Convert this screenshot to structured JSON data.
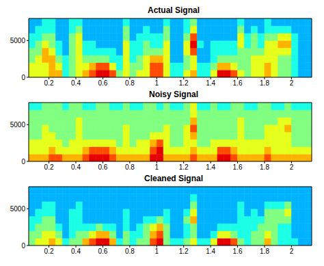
{
  "chart_data": [
    {
      "type": "heatmap",
      "title": "Actual Signal",
      "x_edges": [
        0.05,
        0.1,
        0.15,
        0.2,
        0.25,
        0.3,
        0.35,
        0.4,
        0.45,
        0.5,
        0.55,
        0.6,
        0.65,
        0.7,
        0.75,
        0.8,
        0.85,
        0.9,
        0.95,
        1,
        1.05,
        1.1,
        1.15,
        1.2,
        1.25,
        1.3,
        1.35,
        1.4,
        1.45,
        1.5,
        1.55,
        1.6,
        1.65,
        1.7,
        1.75,
        1.8,
        1.85,
        1.9,
        1.95,
        2,
        2.05,
        2.1,
        2.15
      ],
      "y_edges": [
        0,
        1000,
        2000,
        3000,
        4000,
        5000,
        6000,
        7000,
        8000
      ],
      "xlim": [
        0.05,
        2.15
      ],
      "ylim": [
        0,
        8000
      ],
      "xticks": [
        0.2,
        0.4,
        0.6,
        0.8,
        1,
        1.2,
        1.4,
        1.6,
        1.8,
        2
      ],
      "yticks": [
        0,
        5000
      ],
      "clim": [
        0,
        10
      ],
      "cells": [
        [
          6,
          6,
          6,
          7,
          7,
          4,
          5,
          6,
          7,
          8,
          9,
          9,
          8,
          5,
          6,
          5,
          6,
          6,
          8,
          8,
          6,
          4,
          4,
          6,
          7,
          4,
          4,
          6,
          9,
          9,
          8,
          6,
          5,
          6,
          6,
          7,
          6,
          5,
          5,
          4,
          3,
          3
        ],
        [
          6,
          6,
          6,
          7,
          6,
          4,
          5,
          6,
          6,
          7,
          8,
          8,
          6,
          4,
          6,
          5,
          5,
          6,
          8,
          8,
          6,
          4,
          4,
          5,
          6,
          4,
          4,
          5,
          7,
          7,
          6,
          5,
          5,
          6,
          6,
          7,
          6,
          5,
          5,
          4,
          3,
          3
        ],
        [
          5,
          6,
          7,
          7,
          5,
          4,
          5,
          6,
          5,
          5,
          5,
          5,
          4,
          4,
          6,
          4,
          5,
          6,
          7,
          7,
          6,
          3,
          3,
          5,
          6,
          3,
          3,
          4,
          5,
          5,
          5,
          5,
          5,
          6,
          6,
          6,
          6,
          5,
          5,
          4,
          3,
          3
        ],
        [
          5,
          5,
          7,
          6,
          4,
          3,
          5,
          6,
          4,
          4,
          4,
          4,
          4,
          3,
          6,
          4,
          4,
          5,
          5,
          5,
          6,
          3,
          3,
          6,
          8,
          3,
          3,
          4,
          4,
          4,
          4,
          5,
          5,
          5,
          5,
          6,
          6,
          6,
          6,
          4,
          3,
          3
        ],
        [
          4,
          5,
          6,
          5,
          4,
          3,
          5,
          6,
          4,
          4,
          3,
          3,
          3,
          3,
          6,
          4,
          4,
          5,
          4,
          4,
          6,
          3,
          3,
          6,
          9,
          4,
          3,
          4,
          4,
          4,
          4,
          6,
          4,
          5,
          4,
          6,
          6,
          7,
          7,
          4,
          3,
          3
        ],
        [
          4,
          4,
          5,
          5,
          3,
          3,
          5,
          6,
          3,
          3,
          3,
          3,
          3,
          3,
          5,
          3,
          4,
          4,
          4,
          4,
          5,
          3,
          3,
          5,
          8,
          3,
          3,
          3,
          3,
          3,
          3,
          6,
          4,
          5,
          4,
          5,
          5,
          6,
          6,
          4,
          3,
          3
        ],
        [
          3,
          4,
          4,
          4,
          3,
          3,
          4,
          5,
          3,
          3,
          3,
          3,
          3,
          3,
          5,
          3,
          3,
          4,
          3,
          3,
          5,
          3,
          3,
          4,
          6,
          3,
          3,
          3,
          3,
          3,
          3,
          5,
          3,
          4,
          3,
          4,
          4,
          4,
          4,
          3,
          3,
          3
        ],
        [
          3,
          3,
          4,
          4,
          3,
          3,
          4,
          4,
          3,
          3,
          3,
          3,
          3,
          3,
          4,
          3,
          3,
          3,
          3,
          3,
          4,
          3,
          3,
          4,
          5,
          3,
          3,
          3,
          3,
          3,
          3,
          4,
          3,
          3,
          3,
          4,
          3,
          3,
          3,
          3,
          3,
          3
        ]
      ]
    },
    {
      "type": "heatmap",
      "title": "Noisy Signal",
      "x_edges": [
        0.05,
        0.1,
        0.15,
        0.2,
        0.25,
        0.3,
        0.35,
        0.4,
        0.45,
        0.5,
        0.55,
        0.6,
        0.65,
        0.7,
        0.75,
        0.8,
        0.85,
        0.9,
        0.95,
        1,
        1.05,
        1.1,
        1.15,
        1.2,
        1.25,
        1.3,
        1.35,
        1.4,
        1.45,
        1.5,
        1.55,
        1.6,
        1.65,
        1.7,
        1.75,
        1.8,
        1.85,
        1.9,
        1.95,
        2,
        2.05,
        2.1,
        2.15
      ],
      "y_edges": [
        0,
        1000,
        2000,
        3000,
        4000,
        5000,
        6000,
        7000,
        8000
      ],
      "xlim": [
        0.05,
        2.15
      ],
      "ylim": [
        0,
        8000
      ],
      "xticks": [
        0.2,
        0.4,
        0.6,
        0.8,
        1,
        1.2,
        1.4,
        1.6,
        1.8,
        2
      ],
      "yticks": [
        0,
        5000
      ],
      "clim": [
        0,
        10
      ],
      "cells": [
        [
          7,
          7,
          7,
          8,
          8,
          7,
          7,
          7,
          8,
          9,
          9,
          9,
          8,
          7,
          7,
          7,
          7,
          7,
          9,
          9,
          7,
          7,
          7,
          7,
          8,
          7,
          7,
          7,
          9,
          9,
          8,
          7,
          7,
          7,
          7,
          8,
          7,
          7,
          7,
          7,
          7,
          7
        ],
        [
          6,
          6,
          6,
          7,
          6,
          6,
          6,
          6,
          7,
          8,
          8,
          8,
          7,
          6,
          6,
          6,
          6,
          6,
          8,
          9,
          6,
          6,
          6,
          6,
          7,
          6,
          6,
          6,
          8,
          8,
          7,
          6,
          6,
          6,
          6,
          7,
          6,
          6,
          6,
          6,
          6,
          6
        ],
        [
          6,
          6,
          6,
          6,
          6,
          5,
          6,
          6,
          6,
          6,
          6,
          6,
          6,
          5,
          6,
          5,
          6,
          6,
          7,
          8,
          6,
          5,
          5,
          6,
          6,
          5,
          5,
          6,
          6,
          6,
          6,
          6,
          6,
          6,
          6,
          6,
          6,
          6,
          6,
          5,
          5,
          5
        ],
        [
          5,
          5,
          6,
          6,
          5,
          5,
          5,
          6,
          5,
          5,
          5,
          5,
          5,
          5,
          6,
          5,
          5,
          5,
          6,
          6,
          6,
          5,
          5,
          6,
          7,
          5,
          5,
          5,
          5,
          5,
          5,
          6,
          5,
          5,
          5,
          6,
          6,
          6,
          6,
          5,
          5,
          5
        ],
        [
          5,
          5,
          6,
          5,
          5,
          5,
          5,
          6,
          5,
          5,
          5,
          5,
          5,
          5,
          6,
          5,
          5,
          5,
          5,
          5,
          6,
          5,
          5,
          6,
          8,
          5,
          5,
          5,
          5,
          5,
          5,
          6,
          5,
          5,
          5,
          6,
          6,
          6,
          7,
          5,
          5,
          5
        ],
        [
          5,
          5,
          5,
          5,
          5,
          5,
          5,
          6,
          5,
          5,
          5,
          5,
          5,
          5,
          5,
          5,
          5,
          5,
          5,
          5,
          5,
          5,
          5,
          5,
          7,
          5,
          5,
          5,
          5,
          5,
          5,
          6,
          5,
          5,
          5,
          5,
          5,
          6,
          6,
          5,
          5,
          5
        ],
        [
          5,
          5,
          5,
          5,
          5,
          5,
          5,
          5,
          5,
          5,
          5,
          5,
          5,
          5,
          5,
          5,
          5,
          5,
          5,
          5,
          5,
          5,
          5,
          5,
          6,
          5,
          5,
          5,
          5,
          5,
          5,
          5,
          5,
          5,
          5,
          5,
          5,
          5,
          5,
          5,
          5,
          5
        ],
        [
          4,
          4,
          5,
          5,
          5,
          4,
          5,
          5,
          4,
          4,
          5,
          5,
          4,
          4,
          5,
          4,
          4,
          5,
          5,
          4,
          5,
          4,
          4,
          5,
          6,
          4,
          4,
          5,
          4,
          4,
          5,
          5,
          4,
          4,
          5,
          5,
          4,
          4,
          5,
          4,
          4,
          4
        ]
      ]
    },
    {
      "type": "heatmap",
      "title": "Cleaned Signal",
      "x_edges": [
        0.05,
        0.1,
        0.15,
        0.2,
        0.25,
        0.3,
        0.35,
        0.4,
        0.45,
        0.5,
        0.55,
        0.6,
        0.65,
        0.7,
        0.75,
        0.8,
        0.85,
        0.9,
        0.95,
        1,
        1.05,
        1.1,
        1.15,
        1.2,
        1.25,
        1.3,
        1.35,
        1.4,
        1.45,
        1.5,
        1.55,
        1.6,
        1.65,
        1.7,
        1.75,
        1.8,
        1.85,
        1.9,
        1.95,
        2,
        2.05,
        2.1,
        2.15
      ],
      "y_edges": [
        0,
        1000,
        2000,
        3000,
        4000,
        5000,
        6000,
        7000,
        8000
      ],
      "xlim": [
        0.05,
        2.15
      ],
      "ylim": [
        0,
        8000
      ],
      "xticks": [
        0.2,
        0.4,
        0.6,
        0.8,
        1,
        1.2,
        1.4,
        1.6,
        1.8,
        2
      ],
      "yticks": [
        0,
        5000
      ],
      "clim": [
        0,
        10
      ],
      "cells": [
        [
          5,
          6,
          6,
          7,
          6,
          4,
          5,
          5,
          7,
          8,
          9,
          9,
          7,
          4,
          5,
          4,
          5,
          5,
          8,
          9,
          5,
          4,
          4,
          5,
          6,
          4,
          4,
          6,
          9,
          9,
          8,
          5,
          4,
          5,
          5,
          7,
          5,
          4,
          4,
          4,
          3,
          3
        ],
        [
          5,
          5,
          6,
          6,
          5,
          3,
          4,
          5,
          5,
          6,
          7,
          7,
          5,
          3,
          5,
          4,
          4,
          5,
          7,
          8,
          5,
          3,
          3,
          4,
          5,
          3,
          3,
          4,
          6,
          6,
          5,
          4,
          4,
          5,
          5,
          6,
          5,
          4,
          4,
          3,
          3,
          3
        ],
        [
          4,
          5,
          5,
          5,
          4,
          3,
          4,
          4,
          4,
          4,
          5,
          4,
          4,
          3,
          4,
          3,
          4,
          5,
          6,
          7,
          5,
          3,
          3,
          4,
          5,
          3,
          3,
          3,
          4,
          4,
          4,
          4,
          4,
          4,
          5,
          5,
          5,
          4,
          4,
          3,
          3,
          3
        ],
        [
          4,
          4,
          5,
          5,
          3,
          3,
          4,
          4,
          3,
          3,
          3,
          3,
          3,
          3,
          4,
          3,
          3,
          4,
          4,
          5,
          4,
          3,
          3,
          5,
          7,
          3,
          3,
          3,
          3,
          3,
          3,
          4,
          4,
          4,
          4,
          5,
          5,
          5,
          5,
          3,
          3,
          3
        ],
        [
          3,
          4,
          4,
          4,
          3,
          3,
          4,
          4,
          3,
          3,
          3,
          3,
          3,
          3,
          4,
          3,
          3,
          3,
          3,
          3,
          4,
          3,
          3,
          4,
          6,
          3,
          3,
          3,
          3,
          3,
          3,
          4,
          3,
          4,
          3,
          5,
          5,
          5,
          6,
          3,
          3,
          3
        ],
        [
          3,
          3,
          4,
          4,
          3,
          3,
          3,
          4,
          3,
          3,
          3,
          3,
          3,
          3,
          3,
          3,
          3,
          3,
          3,
          3,
          3,
          3,
          3,
          3,
          5,
          3,
          3,
          3,
          3,
          3,
          3,
          4,
          3,
          3,
          3,
          4,
          4,
          4,
          5,
          3,
          3,
          3
        ],
        [
          3,
          3,
          3,
          3,
          3,
          3,
          3,
          3,
          3,
          3,
          3,
          3,
          3,
          3,
          3,
          3,
          3,
          3,
          3,
          3,
          3,
          3,
          3,
          3,
          4,
          3,
          3,
          3,
          3,
          3,
          3,
          3,
          3,
          3,
          3,
          3,
          3,
          3,
          3,
          3,
          3,
          3
        ],
        [
          3,
          3,
          3,
          3,
          3,
          3,
          3,
          3,
          3,
          3,
          3,
          3,
          3,
          3,
          3,
          3,
          3,
          3,
          3,
          3,
          3,
          3,
          3,
          3,
          3,
          3,
          3,
          3,
          3,
          3,
          3,
          3,
          3,
          3,
          3,
          3,
          3,
          3,
          3,
          3,
          3,
          3
        ]
      ]
    }
  ]
}
